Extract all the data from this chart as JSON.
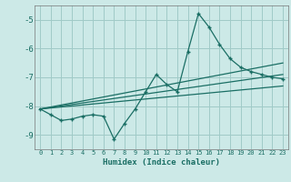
{
  "xlabel": "Humidex (Indice chaleur)",
  "xlim": [
    -0.5,
    23.5
  ],
  "ylim": [
    -9.5,
    -4.5
  ],
  "yticks": [
    -9,
    -8,
    -7,
    -6,
    -5
  ],
  "xticks": [
    0,
    1,
    2,
    3,
    4,
    5,
    6,
    7,
    8,
    9,
    10,
    11,
    12,
    13,
    14,
    15,
    16,
    17,
    18,
    19,
    20,
    21,
    22,
    23
  ],
  "bg_color": "#cce9e7",
  "grid_color_teal": "#a0cbc8",
  "grid_color_pink": "#d4a0a0",
  "line_color": "#1a6e64",
  "series1_x": [
    0,
    1,
    2,
    3,
    4,
    5,
    6,
    7,
    8,
    9,
    10,
    11,
    12,
    13,
    14,
    15,
    16,
    17,
    18,
    19,
    20,
    21,
    22,
    23
  ],
  "series1_y": [
    -8.1,
    -8.3,
    -8.5,
    -8.45,
    -8.35,
    -8.3,
    -8.35,
    -9.15,
    -8.6,
    -8.1,
    -7.5,
    -6.9,
    -7.25,
    -7.5,
    -6.1,
    -4.78,
    -5.25,
    -5.85,
    -6.35,
    -6.65,
    -6.8,
    -6.9,
    -7.0,
    -7.05
  ],
  "series2_x": [
    0,
    23
  ],
  "series2_y": [
    -8.1,
    -6.5
  ],
  "series3_x": [
    0,
    23
  ],
  "series3_y": [
    -8.1,
    -6.9
  ],
  "series4_x": [
    0,
    23
  ],
  "series4_y": [
    -8.1,
    -7.3
  ]
}
